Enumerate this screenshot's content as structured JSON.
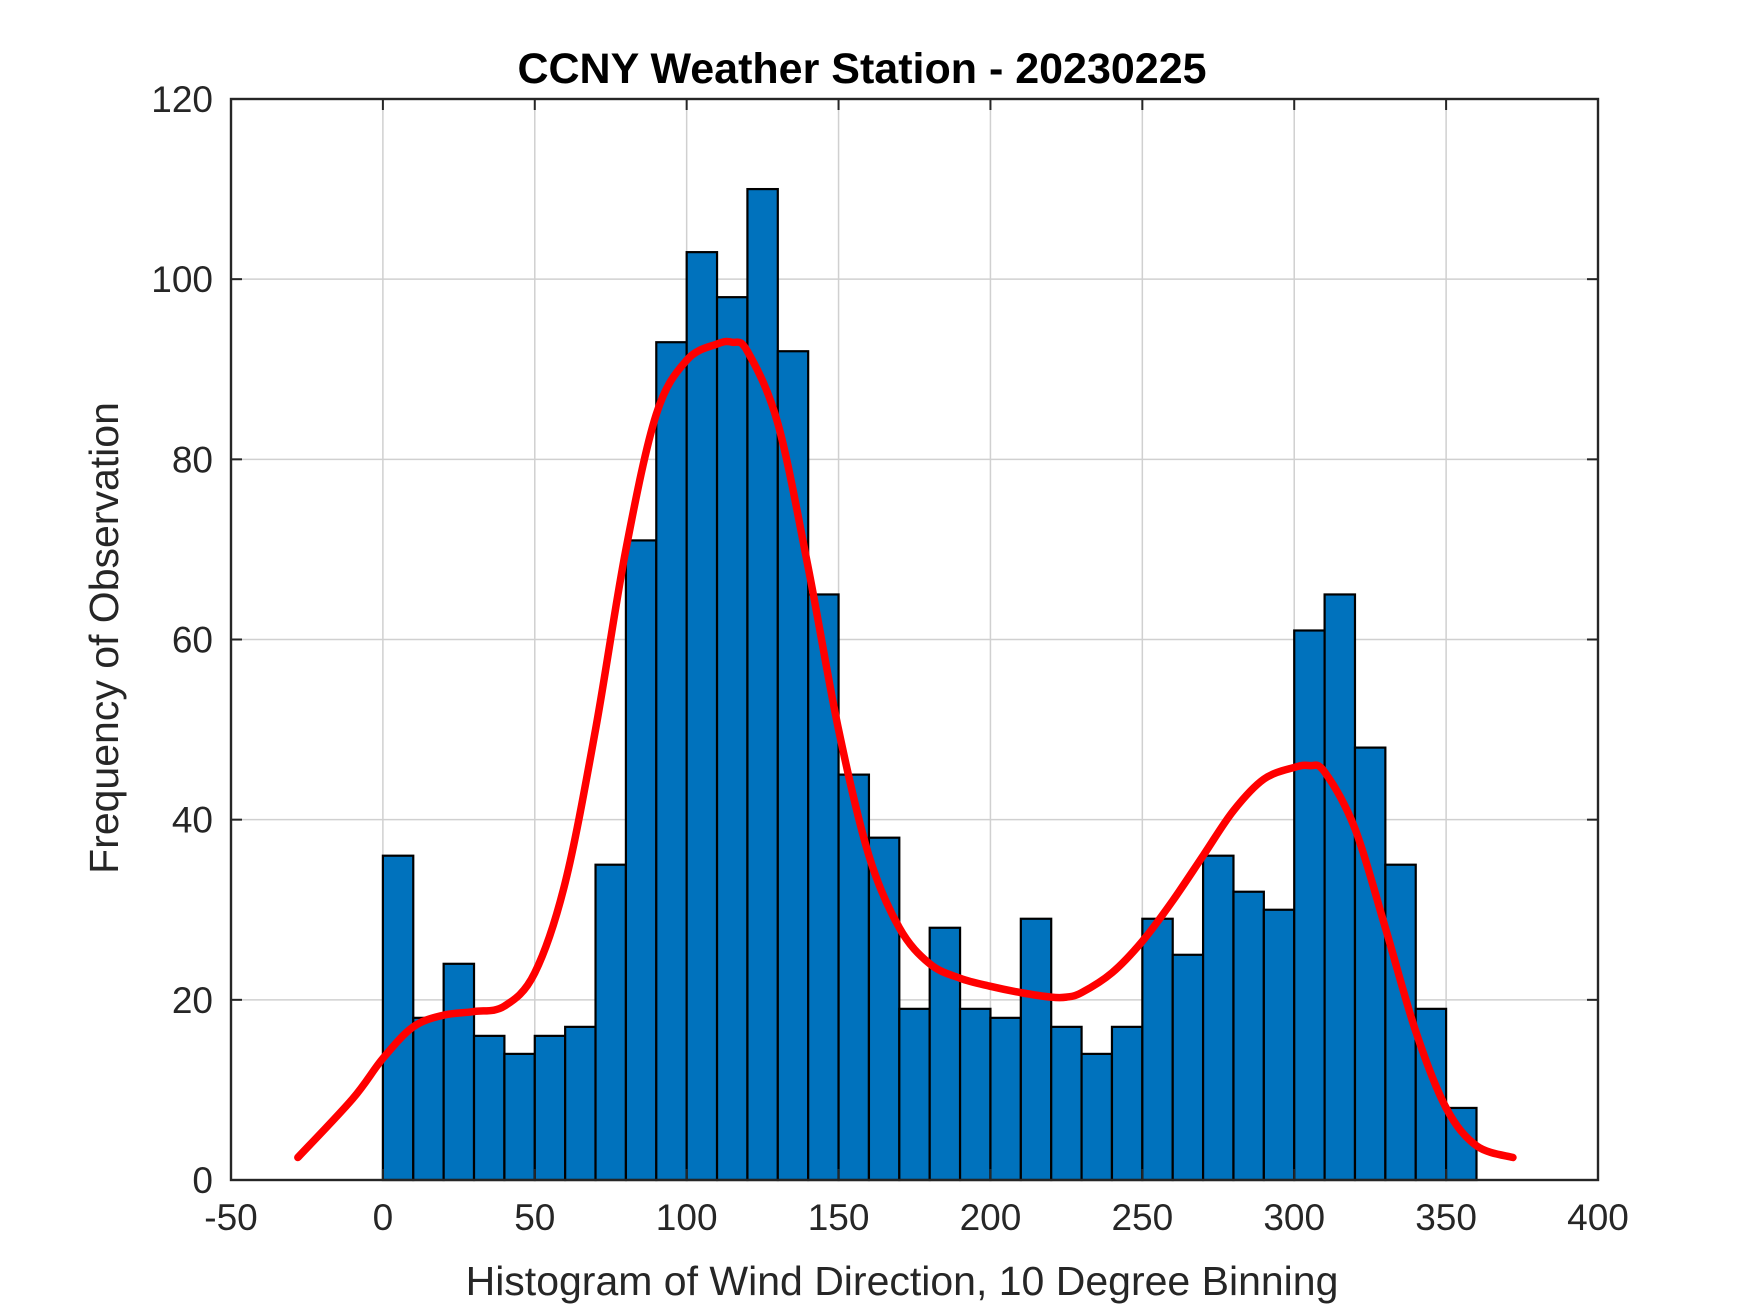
{
  "chart_data": {
    "type": "bar",
    "title": "CCNY Weather Station - 20230225",
    "xlabel": "Histogram of Wind Direction, 10 Degree Binning",
    "ylabel": "Frequency of Observation",
    "xlim": [
      -50,
      400
    ],
    "ylim": [
      0,
      120
    ],
    "x_ticks": [
      -50,
      0,
      50,
      100,
      150,
      200,
      250,
      300,
      350,
      400
    ],
    "y_ticks": [
      0,
      20,
      40,
      60,
      80,
      100,
      120
    ],
    "grid": true,
    "bin_width": 10,
    "bin_edges_start": [
      0,
      10,
      20,
      30,
      40,
      50,
      60,
      70,
      80,
      90,
      100,
      110,
      120,
      130,
      140,
      150,
      160,
      170,
      180,
      190,
      200,
      210,
      220,
      230,
      240,
      250,
      260,
      270,
      280,
      290,
      300,
      310,
      320,
      330,
      340,
      350
    ],
    "values": [
      36,
      18,
      24,
      16,
      14,
      16,
      17,
      35,
      71,
      93,
      103,
      98,
      110,
      92,
      65,
      45,
      38,
      19,
      28,
      19,
      18,
      29,
      17,
      14,
      17,
      29,
      25,
      36,
      32,
      30,
      61,
      65,
      48,
      35,
      19,
      8
    ],
    "bar_color": "#0072bd",
    "bar_edge_color": "#000000",
    "fit_curve": {
      "type": "line",
      "color": "#ff0000",
      "x": [
        -28,
        -10,
        0,
        10,
        20,
        30,
        40,
        50,
        60,
        70,
        80,
        90,
        100,
        110,
        115,
        120,
        130,
        140,
        150,
        160,
        170,
        180,
        190,
        200,
        210,
        220,
        225,
        230,
        240,
        250,
        260,
        270,
        280,
        290,
        300,
        305,
        310,
        320,
        330,
        340,
        350,
        360,
        372
      ],
      "y": [
        2.5,
        9,
        13.5,
        17,
        18.3,
        18.7,
        19.3,
        23,
        33,
        50,
        70,
        85,
        91,
        92.8,
        93,
        92,
        84,
        68,
        50,
        36,
        28,
        24,
        22.4,
        21.5,
        20.8,
        20.3,
        20.3,
        20.8,
        23,
        26.5,
        31,
        36,
        41,
        44.5,
        45.8,
        46,
        45.3,
        39,
        28,
        16.5,
        8,
        3.8,
        2.5
      ]
    }
  }
}
